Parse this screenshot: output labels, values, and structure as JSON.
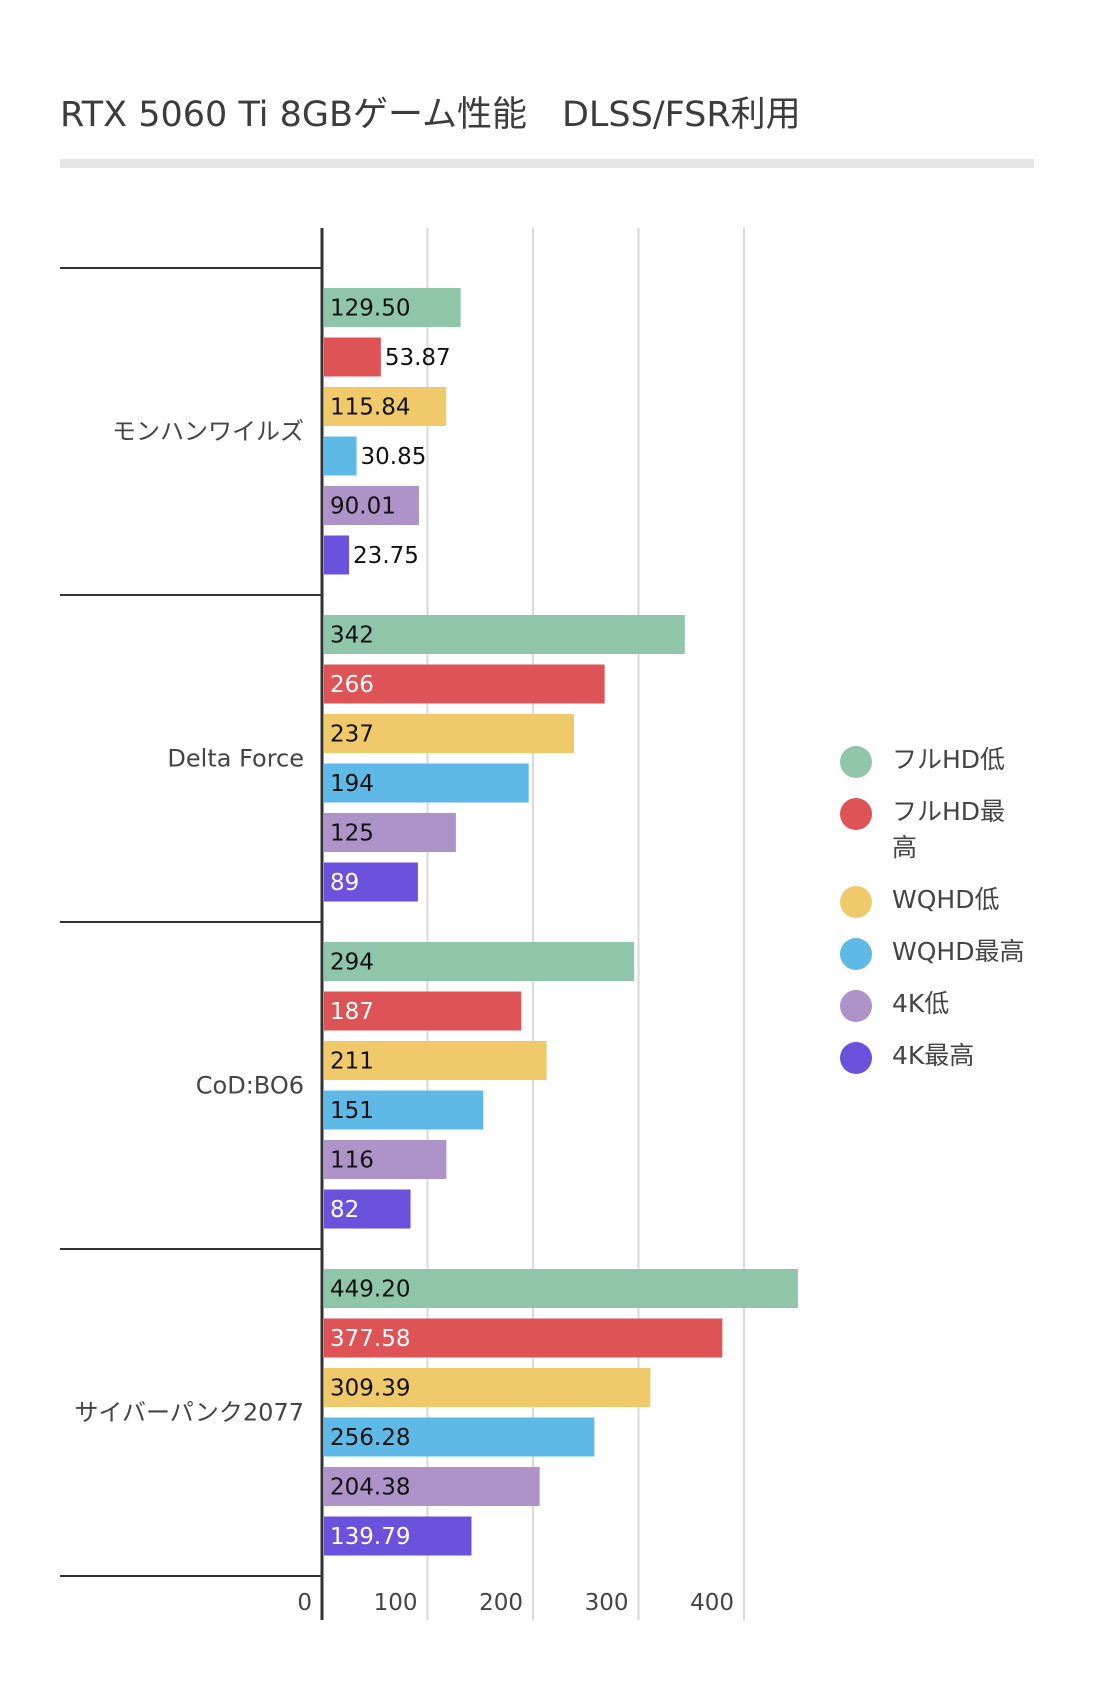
{
  "title": "RTX 5060 Ti 8GBゲーム性能　DLSS/FSR利用",
  "chart_data": {
    "type": "bar",
    "orientation": "horizontal",
    "categories": [
      "モンハンワイルズ",
      "Delta Force",
      "CoD:BO6",
      "サイバーパンク2077"
    ],
    "series": [
      {
        "name": "フルHD低",
        "color": "#8fc5a8",
        "values": [
          129.5,
          342,
          294,
          449.2
        ],
        "labels": [
          "129.50",
          "342",
          "294",
          "449.20"
        ]
      },
      {
        "name": "フルHD最高",
        "color": "#de5355",
        "values": [
          53.87,
          266,
          187,
          377.58
        ],
        "labels": [
          "53.87",
          "266",
          "187",
          "377.58"
        ]
      },
      {
        "name": "WQHD低",
        "color": "#efc96a",
        "values": [
          115.84,
          237,
          211,
          309.39
        ],
        "labels": [
          "115.84",
          "237",
          "211",
          "309.39"
        ]
      },
      {
        "name": "WQHD最高",
        "color": "#5eb9e6",
        "values": [
          30.85,
          194,
          151,
          256.28
        ],
        "labels": [
          "30.85",
          "194",
          "151",
          "256.28"
        ]
      },
      {
        "name": "4K低",
        "color": "#ad93c8",
        "values": [
          90.01,
          125,
          116,
          204.38
        ],
        "labels": [
          "90.01",
          "125",
          "116",
          "204.38"
        ]
      },
      {
        "name": "4K最高",
        "color": "#6a52dc",
        "values": [
          23.75,
          89,
          82,
          139.79
        ],
        "labels": [
          "23.75",
          "89",
          "82",
          "139.79"
        ]
      }
    ],
    "xlim": [
      0,
      460
    ],
    "xticks": [
      "0",
      "100",
      "200",
      "300",
      "400"
    ],
    "grid": true,
    "legend": "right"
  }
}
